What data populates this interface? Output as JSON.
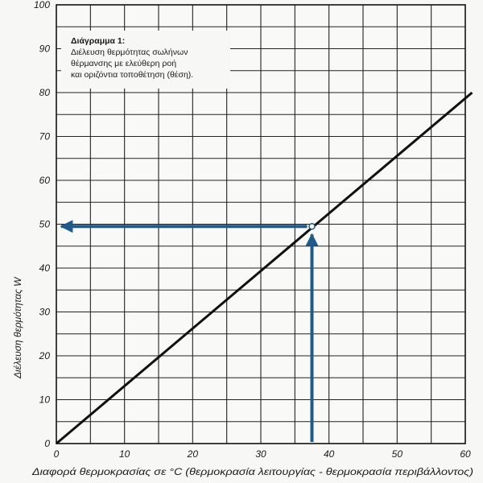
{
  "chart_data": {
    "type": "line",
    "xlabel": "Διαφορά θερμοκρασίας σε °C (θερμοκρασία λειτουργίας - θερμοκρασία περιβάλλοντος)",
    "ylabel": "Διέλευση θερμότητας W",
    "xlim": [
      0,
      60
    ],
    "ylim": [
      0,
      100
    ],
    "x_ticks": [
      0,
      10,
      20,
      30,
      40,
      50,
      60
    ],
    "y_ticks": [
      0,
      10,
      20,
      30,
      40,
      50,
      60,
      70,
      80,
      90,
      100
    ],
    "grid": true,
    "grid_step_x": 5,
    "grid_step_y": 5,
    "series": [
      {
        "x": [
          0,
          61
        ],
        "y": [
          0,
          80
        ]
      }
    ],
    "reading": {
      "x": 37.5,
      "y": 49.5
    },
    "line_color": "#111111",
    "arrow_color": "#1f5a8a",
    "annotation": {
      "title": "Διάγραμμα 1:",
      "lines": [
        "Διέλευση θερμότητας σωλήνων",
        "θέρμανσης με ελεύθερη ροή",
        "και οριζόντια τοποθέτηση (θέση)."
      ]
    }
  }
}
